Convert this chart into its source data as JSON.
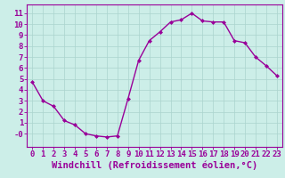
{
  "x": [
    0,
    1,
    2,
    3,
    4,
    5,
    6,
    7,
    8,
    9,
    10,
    11,
    12,
    13,
    14,
    15,
    16,
    17,
    18,
    19,
    20,
    21,
    22,
    23
  ],
  "y": [
    4.7,
    3.0,
    2.5,
    1.2,
    0.8,
    0.0,
    -0.2,
    -0.3,
    -0.2,
    3.2,
    6.7,
    8.5,
    9.3,
    10.2,
    10.4,
    11.0,
    10.3,
    10.2,
    10.2,
    8.5,
    8.3,
    7.0,
    6.2,
    5.3
  ],
  "line_color": "#990099",
  "marker": "D",
  "marker_size": 2.0,
  "bg_color": "#cceee8",
  "grid_color": "#aad4ce",
  "xlabel": "Windchill (Refroidissement éolien,°C)",
  "xlabel_color": "#990099",
  "xlim": [
    -0.5,
    23.5
  ],
  "ylim": [
    -1.2,
    11.8
  ],
  "ytick_vals": [
    0,
    1,
    2,
    3,
    4,
    5,
    6,
    7,
    8,
    9,
    10,
    11
  ],
  "ytick_labels": [
    "-0",
    "1",
    "2",
    "3",
    "4",
    "5",
    "6",
    "7",
    "8",
    "9",
    "10",
    "11"
  ],
  "xticks": [
    0,
    1,
    2,
    3,
    4,
    5,
    6,
    7,
    8,
    9,
    10,
    11,
    12,
    13,
    14,
    15,
    16,
    17,
    18,
    19,
    20,
    21,
    22,
    23
  ],
  "tick_color": "#990099",
  "axis_color": "#990099",
  "tick_labelsize": 6.5,
  "xlabel_fontsize": 7.5,
  "linewidth": 1.0
}
